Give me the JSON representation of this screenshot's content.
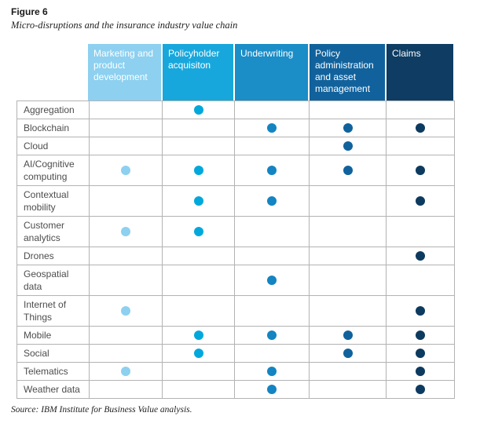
{
  "figure": {
    "label": "Figure 6",
    "caption": "Micro-disruptions and the insurance industry value chain"
  },
  "source_note": "Source: IBM Institute for Business Value analysis.",
  "columns": [
    {
      "label": "Marketing and product development",
      "header_color": "#8dd0f0",
      "dot_color": "#8dd0f0"
    },
    {
      "label": "Policyholder acquisiton",
      "header_color": "#18a7dc",
      "dot_color": "#00a8dc"
    },
    {
      "label": "Underwriting",
      "header_color": "#1b8dc7",
      "dot_color": "#1484c2"
    },
    {
      "label": "Policy administration and asset management",
      "header_color": "#11629c",
      "dot_color": "#10629c"
    },
    {
      "label": "Claims",
      "header_color": "#0e3c62",
      "dot_color": "#0d3a5f"
    }
  ],
  "rows": [
    {
      "label": "Aggregation",
      "dots": [
        0,
        1,
        0,
        0,
        0
      ]
    },
    {
      "label": "Blockchain",
      "dots": [
        0,
        0,
        1,
        1,
        1
      ]
    },
    {
      "label": "Cloud",
      "dots": [
        0,
        0,
        0,
        1,
        0
      ]
    },
    {
      "label": "AI/Cognitive computing",
      "dots": [
        1,
        1,
        1,
        1,
        1
      ]
    },
    {
      "label": "Contextual mobility",
      "dots": [
        0,
        1,
        1,
        0,
        1
      ]
    },
    {
      "label": "Customer analytics",
      "dots": [
        1,
        1,
        0,
        0,
        0
      ]
    },
    {
      "label": "Drones",
      "dots": [
        0,
        0,
        0,
        0,
        1
      ]
    },
    {
      "label": "Geospatial data",
      "dots": [
        0,
        0,
        1,
        0,
        0
      ]
    },
    {
      "label": "Internet of Things",
      "dots": [
        1,
        0,
        0,
        0,
        1
      ]
    },
    {
      "label": "Mobile",
      "dots": [
        0,
        1,
        1,
        1,
        1
      ]
    },
    {
      "label": "Social",
      "dots": [
        0,
        1,
        0,
        1,
        1
      ]
    },
    {
      "label": "Telematics",
      "dots": [
        1,
        0,
        1,
        0,
        1
      ]
    },
    {
      "label": "Weather data",
      "dots": [
        0,
        0,
        1,
        0,
        1
      ]
    }
  ],
  "chart_data": {
    "type": "table",
    "title": "Micro-disruptions and the insurance industry value chain",
    "columns": [
      "Marketing and product development",
      "Policyholder acquisiton",
      "Underwriting",
      "Policy administration and asset management",
      "Claims"
    ],
    "rows": [
      "Aggregation",
      "Blockchain",
      "Cloud",
      "AI/Cognitive computing",
      "Contextual mobility",
      "Customer analytics",
      "Drones",
      "Geospatial data",
      "Internet of Things",
      "Mobile",
      "Social",
      "Telematics",
      "Weather data"
    ],
    "matrix": [
      [
        0,
        1,
        0,
        0,
        0
      ],
      [
        0,
        0,
        1,
        1,
        1
      ],
      [
        0,
        0,
        0,
        1,
        0
      ],
      [
        1,
        1,
        1,
        1,
        1
      ],
      [
        0,
        1,
        1,
        0,
        1
      ],
      [
        1,
        1,
        0,
        0,
        0
      ],
      [
        0,
        0,
        0,
        0,
        1
      ],
      [
        0,
        0,
        1,
        0,
        0
      ],
      [
        1,
        0,
        0,
        0,
        1
      ],
      [
        0,
        1,
        1,
        1,
        1
      ],
      [
        0,
        1,
        0,
        1,
        1
      ],
      [
        1,
        0,
        1,
        0,
        1
      ],
      [
        0,
        0,
        1,
        0,
        1
      ]
    ],
    "legend_position": "none",
    "cell_mark": "dot",
    "dot_colors_by_column": [
      "#8dd0f0",
      "#00a8dc",
      "#1484c2",
      "#10629c",
      "#0d3a5f"
    ]
  }
}
